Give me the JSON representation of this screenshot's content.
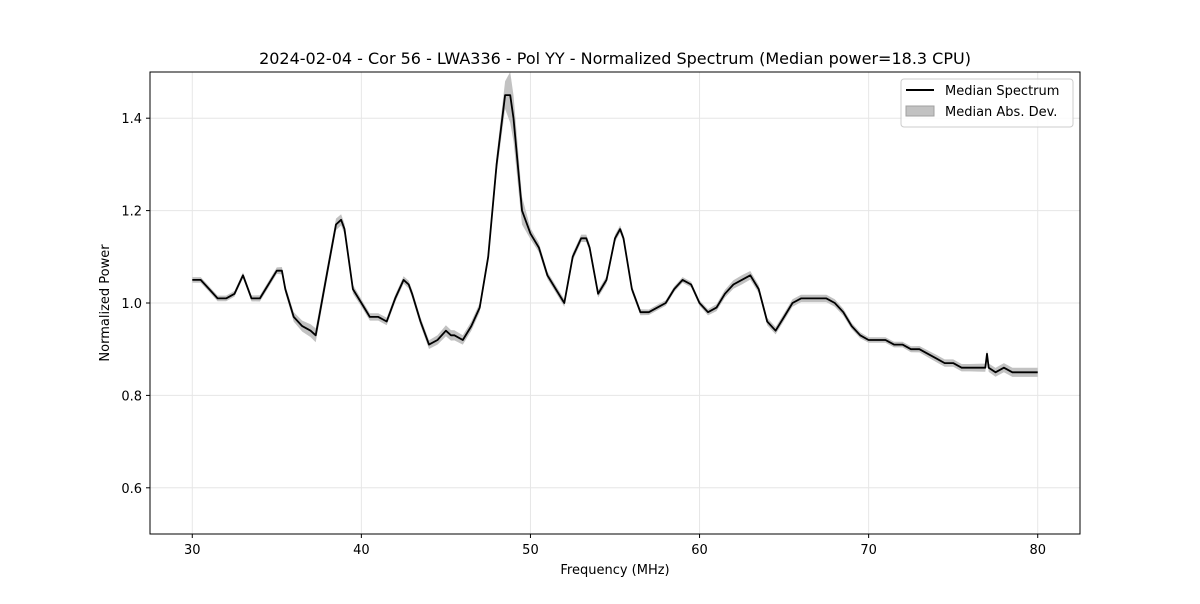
{
  "chart_data": {
    "type": "line",
    "title": "2024-02-04 - Cor 56 - LWA336 - Pol YY - Normalized Spectrum (Median power=18.3 CPU)",
    "xlabel": "Frequency (MHz)",
    "ylabel": "Normalized Power",
    "xlim": [
      27.5,
      82.5
    ],
    "ylim": [
      0.5,
      1.5
    ],
    "xticks": [
      30,
      40,
      50,
      60,
      70,
      80
    ],
    "yticks": [
      0.6,
      0.8,
      1.0,
      1.2,
      1.4
    ],
    "xtick_labels": [
      "30",
      "40",
      "50",
      "60",
      "70",
      "80"
    ],
    "ytick_labels": [
      "0.6",
      "0.8",
      "1.0",
      "1.2",
      "1.4"
    ],
    "grid": true,
    "legend": {
      "position": "top-right",
      "entries": [
        "Median Spectrum",
        "Median Abs. Dev."
      ]
    },
    "series": [
      {
        "name": "Median Spectrum",
        "color": "#000000",
        "x": [
          30.0,
          30.5,
          31.0,
          31.5,
          32.0,
          32.5,
          33.0,
          33.5,
          34.0,
          34.5,
          35.0,
          35.3,
          35.5,
          36.0,
          36.5,
          37.0,
          37.3,
          37.5,
          38.0,
          38.5,
          38.8,
          39.0,
          39.5,
          40.0,
          40.5,
          41.0,
          41.5,
          42.0,
          42.5,
          42.8,
          43.0,
          43.5,
          44.0,
          44.5,
          45.0,
          45.3,
          45.5,
          46.0,
          46.5,
          47.0,
          47.5,
          48.0,
          48.5,
          48.8,
          49.0,
          49.5,
          50.0,
          50.5,
          51.0,
          51.5,
          52.0,
          52.5,
          53.0,
          53.3,
          53.5,
          54.0,
          54.5,
          55.0,
          55.3,
          55.5,
          56.0,
          56.5,
          57.0,
          57.5,
          58.0,
          58.5,
          59.0,
          59.5,
          60.0,
          60.5,
          61.0,
          61.5,
          62.0,
          62.5,
          63.0,
          63.5,
          64.0,
          64.5,
          65.0,
          65.5,
          66.0,
          66.5,
          67.0,
          67.5,
          68.0,
          68.5,
          69.0,
          69.5,
          70.0,
          70.5,
          71.0,
          71.5,
          72.0,
          72.5,
          73.0,
          73.5,
          74.0,
          74.5,
          75.0,
          75.5,
          76.0,
          76.5,
          76.9,
          77.0,
          77.1,
          77.5,
          78.0,
          78.5,
          79.0,
          79.5,
          80.0
        ],
        "y": [
          1.05,
          1.05,
          1.03,
          1.01,
          1.01,
          1.02,
          1.06,
          1.01,
          1.01,
          1.04,
          1.07,
          1.07,
          1.03,
          0.97,
          0.95,
          0.94,
          0.93,
          0.97,
          1.07,
          1.17,
          1.18,
          1.16,
          1.03,
          1.0,
          0.97,
          0.97,
          0.96,
          1.01,
          1.05,
          1.04,
          1.02,
          0.96,
          0.91,
          0.92,
          0.94,
          0.93,
          0.93,
          0.92,
          0.95,
          0.99,
          1.1,
          1.3,
          1.45,
          1.45,
          1.4,
          1.2,
          1.15,
          1.12,
          1.06,
          1.03,
          1.0,
          1.1,
          1.14,
          1.14,
          1.12,
          1.02,
          1.05,
          1.14,
          1.16,
          1.14,
          1.03,
          0.98,
          0.98,
          0.99,
          1.0,
          1.03,
          1.05,
          1.04,
          1.0,
          0.98,
          0.99,
          1.02,
          1.04,
          1.05,
          1.06,
          1.03,
          0.96,
          0.94,
          0.97,
          1.0,
          1.01,
          1.01,
          1.01,
          1.01,
          1.0,
          0.98,
          0.95,
          0.93,
          0.92,
          0.92,
          0.92,
          0.91,
          0.91,
          0.9,
          0.9,
          0.89,
          0.88,
          0.87,
          0.87,
          0.86,
          0.86,
          0.86,
          0.86,
          0.89,
          0.86,
          0.85,
          0.86,
          0.85,
          0.85,
          0.85,
          0.85
        ]
      }
    ],
    "band": {
      "name": "Median Abs. Dev.",
      "color": "#c2c2c2",
      "x": [
        30.0,
        32.0,
        35.0,
        36.5,
        37.3,
        38.8,
        40.0,
        42.5,
        44.5,
        45.0,
        46.0,
        47.5,
        48.5,
        48.8,
        49.0,
        49.5,
        50.0,
        51.0,
        53.0,
        55.3,
        57.0,
        60.0,
        62.5,
        64.0,
        66.0,
        68.0,
        70.0,
        72.0,
        74.0,
        76.0,
        78.0,
        80.0
      ],
      "offset": [
        0.006,
        0.006,
        0.007,
        0.012,
        0.015,
        0.012,
        0.008,
        0.008,
        0.01,
        0.012,
        0.01,
        0.01,
        0.03,
        0.06,
        0.05,
        0.03,
        0.012,
        0.008,
        0.008,
        0.008,
        0.006,
        0.006,
        0.01,
        0.008,
        0.008,
        0.008,
        0.006,
        0.006,
        0.008,
        0.008,
        0.01,
        0.01
      ]
    }
  }
}
